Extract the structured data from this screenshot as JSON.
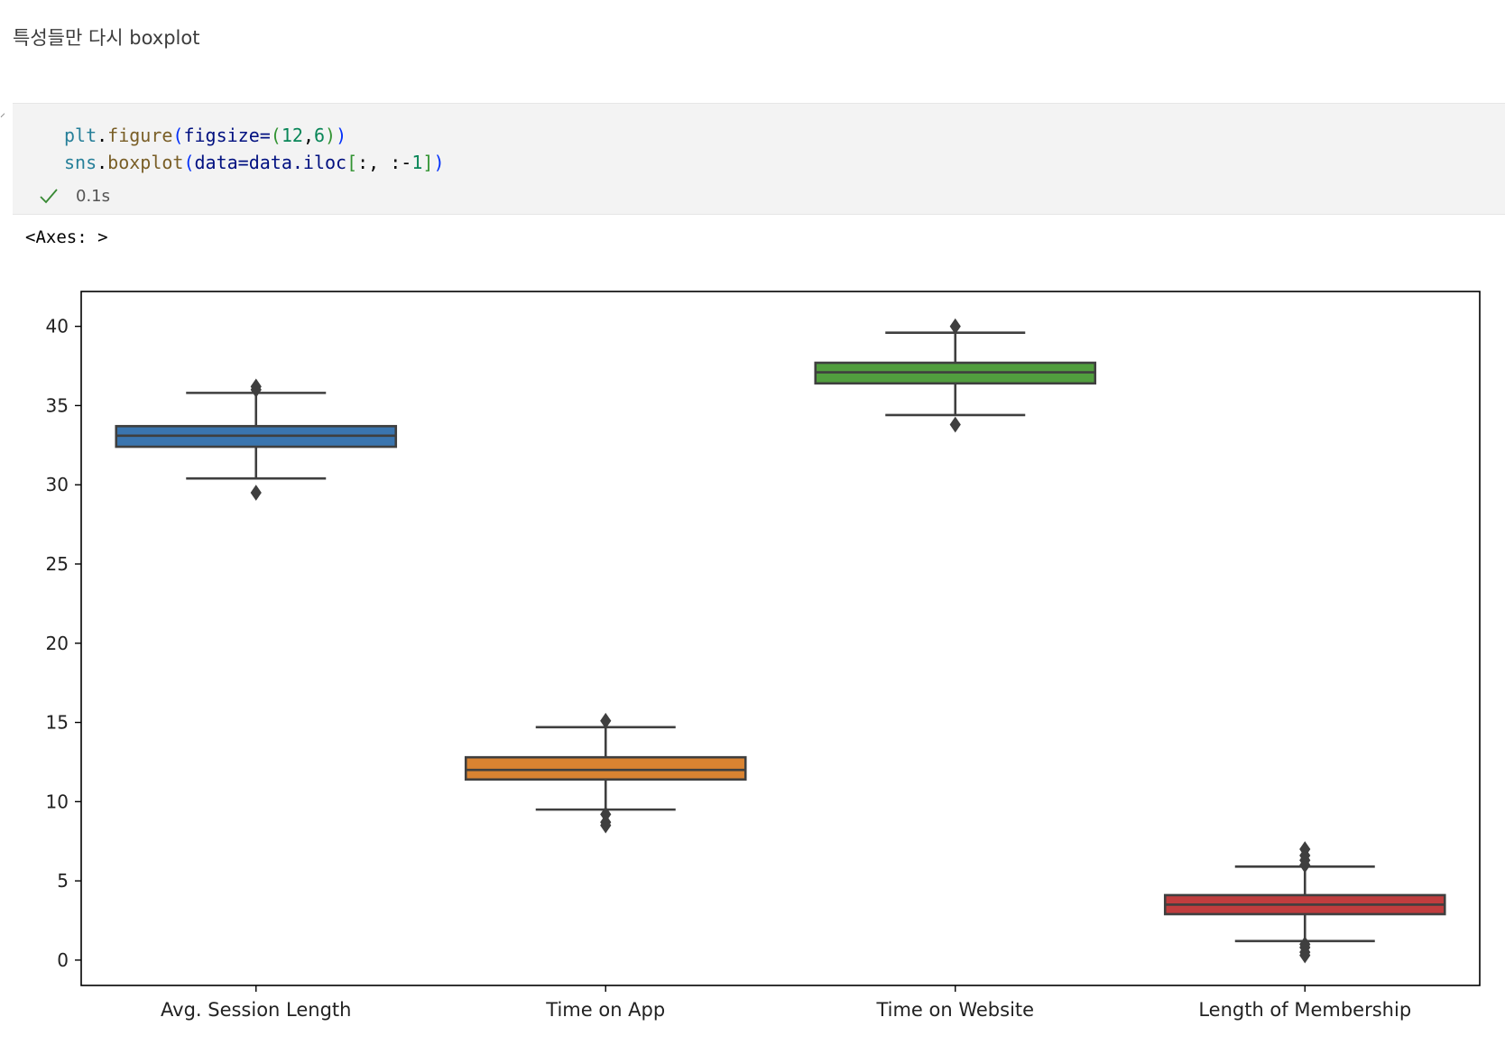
{
  "markdown": {
    "text": "특성들만 다시 boxplot"
  },
  "code": {
    "line1": {
      "obj": "plt",
      "dot": ".",
      "fn": "figure",
      "open": "(",
      "arg": "figsize=",
      "open2": "(",
      "n1": "12",
      "comma": ",",
      "n2": "6",
      "close2": ")",
      "close": ")"
    },
    "line2": {
      "obj": "sns",
      "dot": ".",
      "fn": "boxplot",
      "open": "(",
      "arg": "data=data.iloc",
      "open2": "[",
      "slice": ":, :-",
      "n1": "1",
      "close2": "]",
      "close": ")"
    }
  },
  "status": {
    "icon": "check-icon",
    "duration": "0.1s",
    "color": "#388a34"
  },
  "output": {
    "text": "<Axes: >"
  },
  "chart_data": {
    "type": "box",
    "categories": [
      "Avg. Session Length",
      "Time on App",
      "Time on Website",
      "Length of Membership"
    ],
    "colors": [
      "#3a75af",
      "#d98331",
      "#519e3e",
      "#c03d3e"
    ],
    "series": [
      {
        "q1": 32.4,
        "median": 33.1,
        "q3": 33.7,
        "whisker_low": 30.4,
        "whisker_high": 35.8,
        "outliers": [
          29.5,
          36.0,
          36.2
        ]
      },
      {
        "q1": 11.4,
        "median": 12.0,
        "q3": 12.8,
        "whisker_low": 9.5,
        "whisker_high": 14.7,
        "outliers": [
          15.1,
          9.2,
          8.7,
          8.5
        ]
      },
      {
        "q1": 36.4,
        "median": 37.1,
        "q3": 37.7,
        "whisker_low": 34.4,
        "whisker_high": 39.6,
        "outliers": [
          40.0,
          33.8
        ]
      },
      {
        "q1": 2.9,
        "median": 3.5,
        "q3": 4.1,
        "whisker_low": 1.2,
        "whisker_high": 5.9,
        "outliers": [
          7.0,
          6.6,
          6.3,
          6.0,
          1.0,
          0.8,
          0.5,
          0.3
        ]
      }
    ],
    "yticks": [
      0,
      5,
      10,
      15,
      20,
      25,
      30,
      35,
      40
    ],
    "ylim": [
      -1.6,
      42.2
    ],
    "grid": false
  }
}
